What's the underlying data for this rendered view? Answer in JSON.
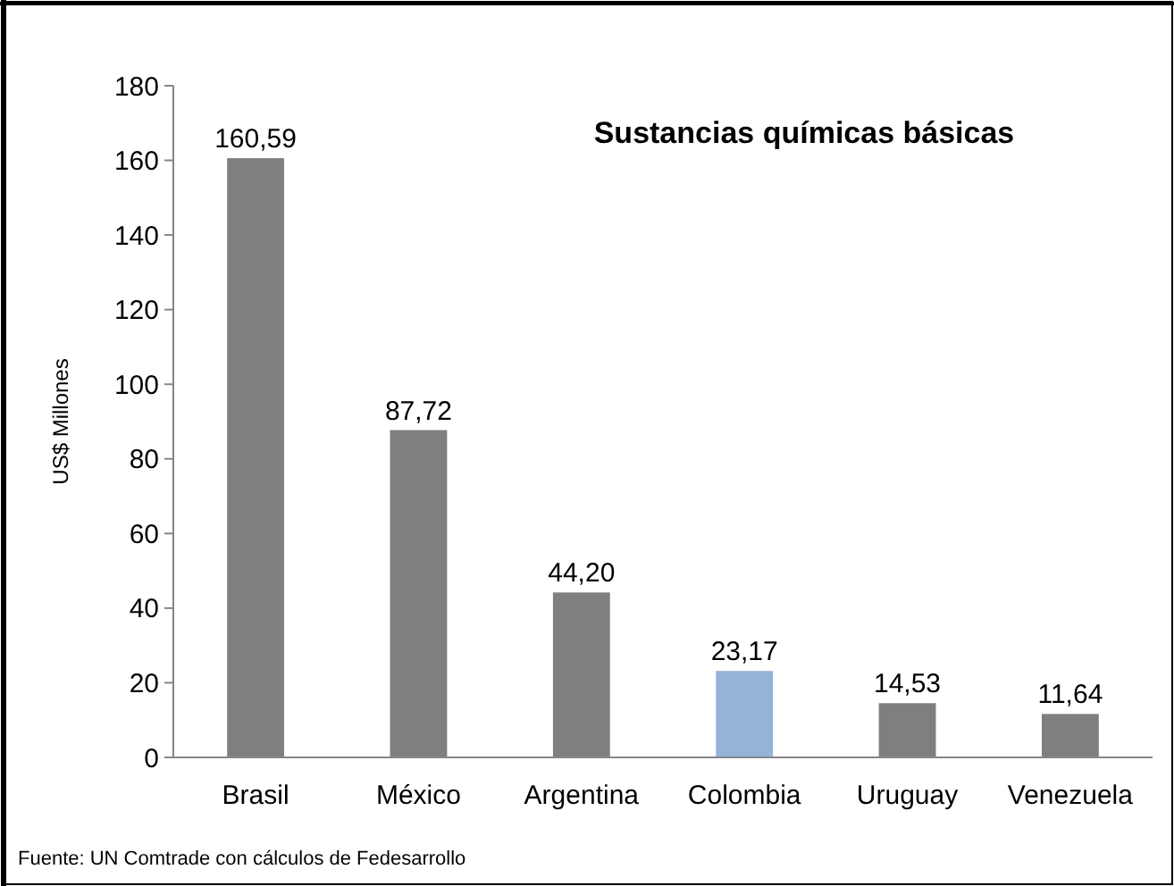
{
  "chart_data": {
    "type": "bar",
    "title": "Sustancias químicas básicas",
    "ylabel": "US$ Millones",
    "categories": [
      "Brasil",
      "México",
      "Argentina",
      "Colombia",
      "Uruguay",
      "Venezuela"
    ],
    "values": [
      160.59,
      87.72,
      44.2,
      23.17,
      14.53,
      11.64
    ],
    "colors": [
      "#7f7f7f",
      "#7f7f7f",
      "#7f7f7f",
      "#95b3d7",
      "#7f7f7f",
      "#7f7f7f"
    ],
    "value_labels": [
      "160,59",
      "87,72",
      "44,20",
      "23,17",
      "14,53",
      "11,64"
    ],
    "ylim": [
      0,
      180
    ],
    "yticks": [
      0,
      20,
      40,
      60,
      80,
      100,
      120,
      140,
      160,
      180
    ],
    "grid": false,
    "annotations": [
      "Fuente: UN Comtrade con cálculos de Fedesarrollo"
    ]
  }
}
